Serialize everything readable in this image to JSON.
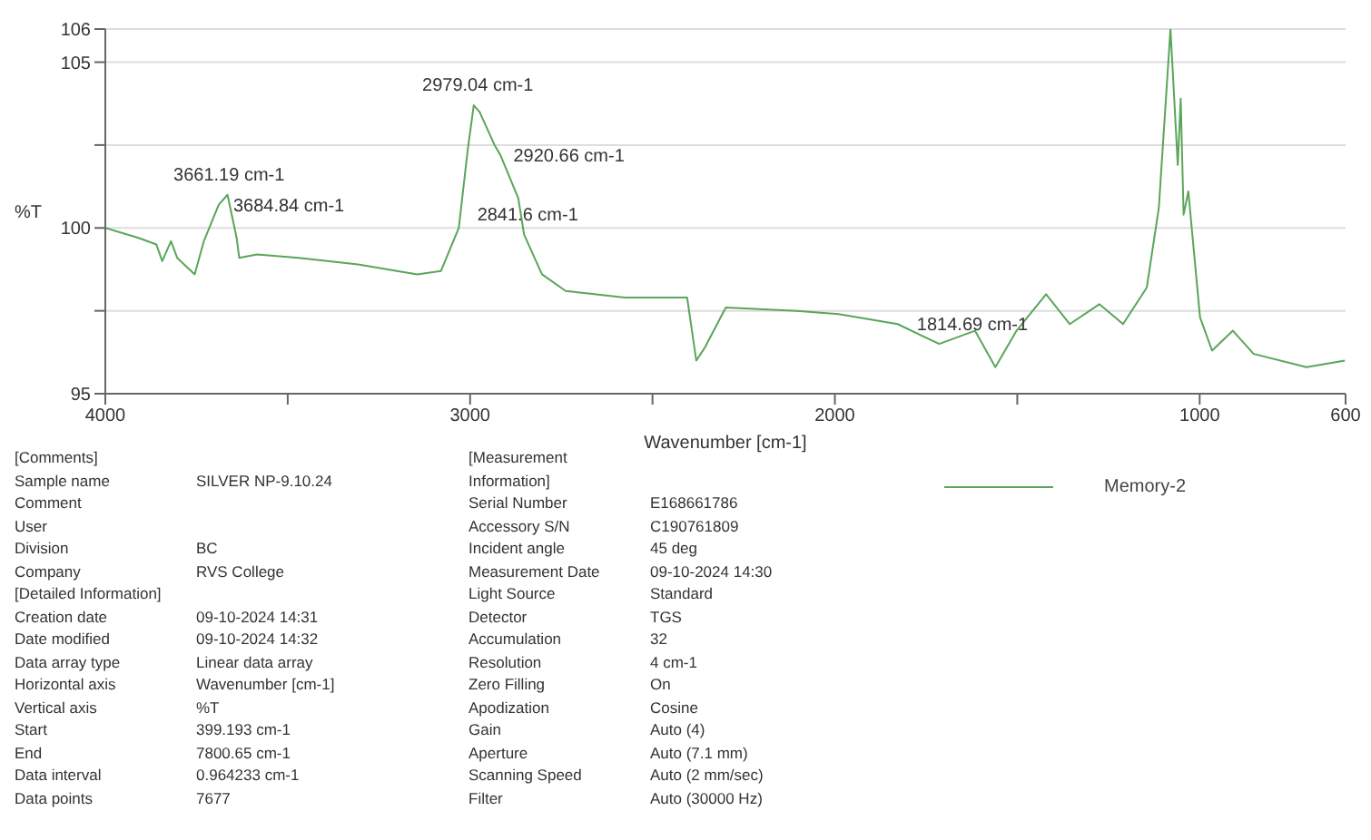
{
  "chart_data": {
    "type": "line",
    "xlabel": "Wavenumber [cm-1]",
    "ylabel": "%T",
    "xlim": [
      4000,
      600
    ],
    "xticks": [
      4000,
      {
        "value": 3500,
        "label": null
      },
      3000,
      {
        "value": 2500,
        "label": null
      },
      2000,
      {
        "value": 1500,
        "label": null
      },
      1000,
      600
    ],
    "ylim": [
      95,
      106
    ],
    "yticks": [
      95,
      {
        "value": 97.5,
        "label": null
      },
      100,
      {
        "value": 102.5,
        "label": null
      },
      105,
      106
    ],
    "grid": "y",
    "legend": "bottom right",
    "marker": "none",
    "line_style": "solid",
    "series": [
      {
        "name": "Memory-2",
        "color": "#5aa55a",
        "x": [
          4000,
          3909,
          3860,
          3844,
          3820,
          3803,
          3755,
          3730,
          3689,
          3665,
          3640,
          3633,
          3584,
          3470,
          3307,
          3145,
          3080,
          3031,
          3006,
          2990,
          2974,
          2933,
          2917,
          2868,
          2852,
          2803,
          2738,
          2576,
          2478,
          2405,
          2380,
          2356,
          2299,
          2104,
          1990,
          1828,
          1714,
          1616,
          1560,
          1502,
          1421,
          1356,
          1275,
          1210,
          1145,
          1112,
          1080,
          1060,
          1052,
          1044,
          1031,
          999,
          966,
          909,
          852,
          707,
          602
        ],
        "values": [
          100.0,
          99.7,
          99.5,
          99.0,
          99.6,
          99.1,
          98.6,
          99.6,
          100.7,
          101.0,
          99.7,
          99.1,
          99.2,
          99.1,
          98.9,
          98.6,
          98.7,
          100.0,
          102.4,
          103.7,
          103.5,
          102.5,
          102.2,
          100.9,
          99.8,
          98.6,
          98.1,
          97.9,
          97.9,
          97.9,
          96.0,
          96.4,
          97.6,
          97.5,
          97.4,
          97.1,
          96.5,
          96.9,
          95.8,
          96.9,
          98.0,
          97.1,
          97.7,
          97.1,
          98.2,
          100.6,
          106.0,
          101.9,
          103.9,
          100.4,
          101.1,
          97.3,
          96.3,
          96.9,
          96.2,
          95.8,
          96.0
        ]
      }
    ],
    "annotations": [
      {
        "text": "3661.19 cm-1",
        "x": 3661,
        "y": 101.0
      },
      {
        "text": "3684.84 cm-1",
        "x": 3689,
        "y": 100.7
      },
      {
        "text": "2979.04 cm-1",
        "x": 2979,
        "y": 103.7
      },
      {
        "text": "2920.66 cm-1",
        "x": 2921,
        "y": 102.2
      },
      {
        "text": "2841.6 cm-1",
        "x": 2842,
        "y": 99.8
      },
      {
        "text": "1814.69 cm-1",
        "x": 1815,
        "y": 97.1
      },
      "[Comments]",
      "Sample name\tSILVER NP-9.10.24",
      "Comment",
      "User",
      "Division\tBC",
      "Company\tRVS College",
      "[Detailed Information]",
      "Creation date\t09-10-2024 14:31",
      "Date modified\t09-10-2024 14:32",
      "Data array type\tLinear data array",
      "Horizontal axis\tWavenumber [cm-1]",
      "Vertical axis\t%T",
      "Start\t399.193 cm-1",
      "End\t7800.65 cm-1",
      "Data interval\t0.964233 cm-1",
      "Data points\t7677",
      "[Measurement Information]",
      "Serial Number\tE168661786",
      "Accessory S/N\tC190761809",
      "Incident angle\t45 deg",
      "Measurement Date\t09-10-2024 14:30",
      "Light Source\tStandard",
      "Detector\tTGS",
      "Accumulation\t32",
      "Resolution\t4 cm-1",
      "Zero Filling\tOn",
      "Apodization\tCosine",
      "Gain\tAuto (4)",
      "Aperture\tAuto (7.1 mm)",
      "Scanning Speed\tAuto (2 mm/sec)",
      "Filter\tAuto (30000 Hz)"
    ]
  }
}
